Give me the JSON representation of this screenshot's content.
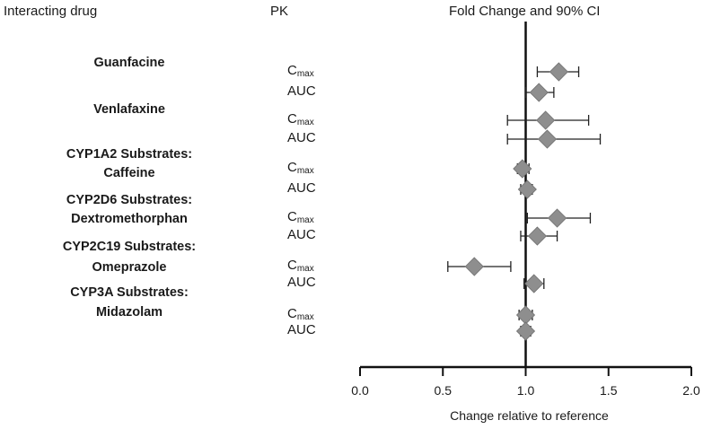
{
  "chart_data": {
    "type": "forest",
    "headers": {
      "drug": "Interacting drug",
      "pk": "PK",
      "estimate": "Fold Change and 90% CI"
    },
    "xlabel": "Change relative to reference",
    "xlim": [
      0.0,
      2.0
    ],
    "xticks": [
      "0.0",
      "0.5",
      "1.0",
      "1.5",
      "2.0"
    ],
    "reference_line": 1.0,
    "groups": [
      {
        "label_lines": [
          "Guanfacine"
        ],
        "rows": [
          {
            "pk_main": "C",
            "pk_sub": "max",
            "estimate": 1.2,
            "lower": 1.07,
            "upper": 1.32
          },
          {
            "pk_main": "AUC",
            "pk_sub": "",
            "estimate": 1.08,
            "lower": 1.0,
            "upper": 1.17
          }
        ]
      },
      {
        "label_lines": [
          "Venlafaxine"
        ],
        "rows": [
          {
            "pk_main": "C",
            "pk_sub": "max",
            "estimate": 1.12,
            "lower": 0.89,
            "upper": 1.38
          },
          {
            "pk_main": "AUC",
            "pk_sub": "",
            "estimate": 1.13,
            "lower": 0.89,
            "upper": 1.45
          }
        ]
      },
      {
        "label_lines": [
          "CYP1A2 Substrates:",
          "Caffeine"
        ],
        "rows": [
          {
            "pk_main": "C",
            "pk_sub": "max",
            "estimate": 0.98,
            "lower": 0.95,
            "upper": 1.02
          },
          {
            "pk_main": "AUC",
            "pk_sub": "",
            "estimate": 1.01,
            "lower": 0.97,
            "upper": 1.04
          }
        ]
      },
      {
        "label_lines": [
          "CYP2D6 Substrates:",
          "Dextromethorphan"
        ],
        "rows": [
          {
            "pk_main": "C",
            "pk_sub": "max",
            "estimate": 1.19,
            "lower": 1.01,
            "upper": 1.39
          },
          {
            "pk_main": "AUC",
            "pk_sub": "",
            "estimate": 1.07,
            "lower": 0.97,
            "upper": 1.19
          }
        ]
      },
      {
        "label_lines": [
          "CYP2C19 Substrates:",
          "Omeprazole"
        ],
        "rows": [
          {
            "pk_main": "C",
            "pk_sub": "max",
            "estimate": 0.69,
            "lower": 0.53,
            "upper": 0.91
          },
          {
            "pk_main": "AUC",
            "pk_sub": "",
            "estimate": 1.05,
            "lower": 0.99,
            "upper": 1.11
          }
        ]
      },
      {
        "label_lines": [
          "CYP3A Substrates:",
          "Midazolam"
        ],
        "rows": [
          {
            "pk_main": "C",
            "pk_sub": "max",
            "estimate": 1.0,
            "lower": 0.96,
            "upper": 1.04
          },
          {
            "pk_main": "AUC",
            "pk_sub": "",
            "estimate": 1.0,
            "lower": 0.97,
            "upper": 1.03
          }
        ]
      }
    ]
  }
}
